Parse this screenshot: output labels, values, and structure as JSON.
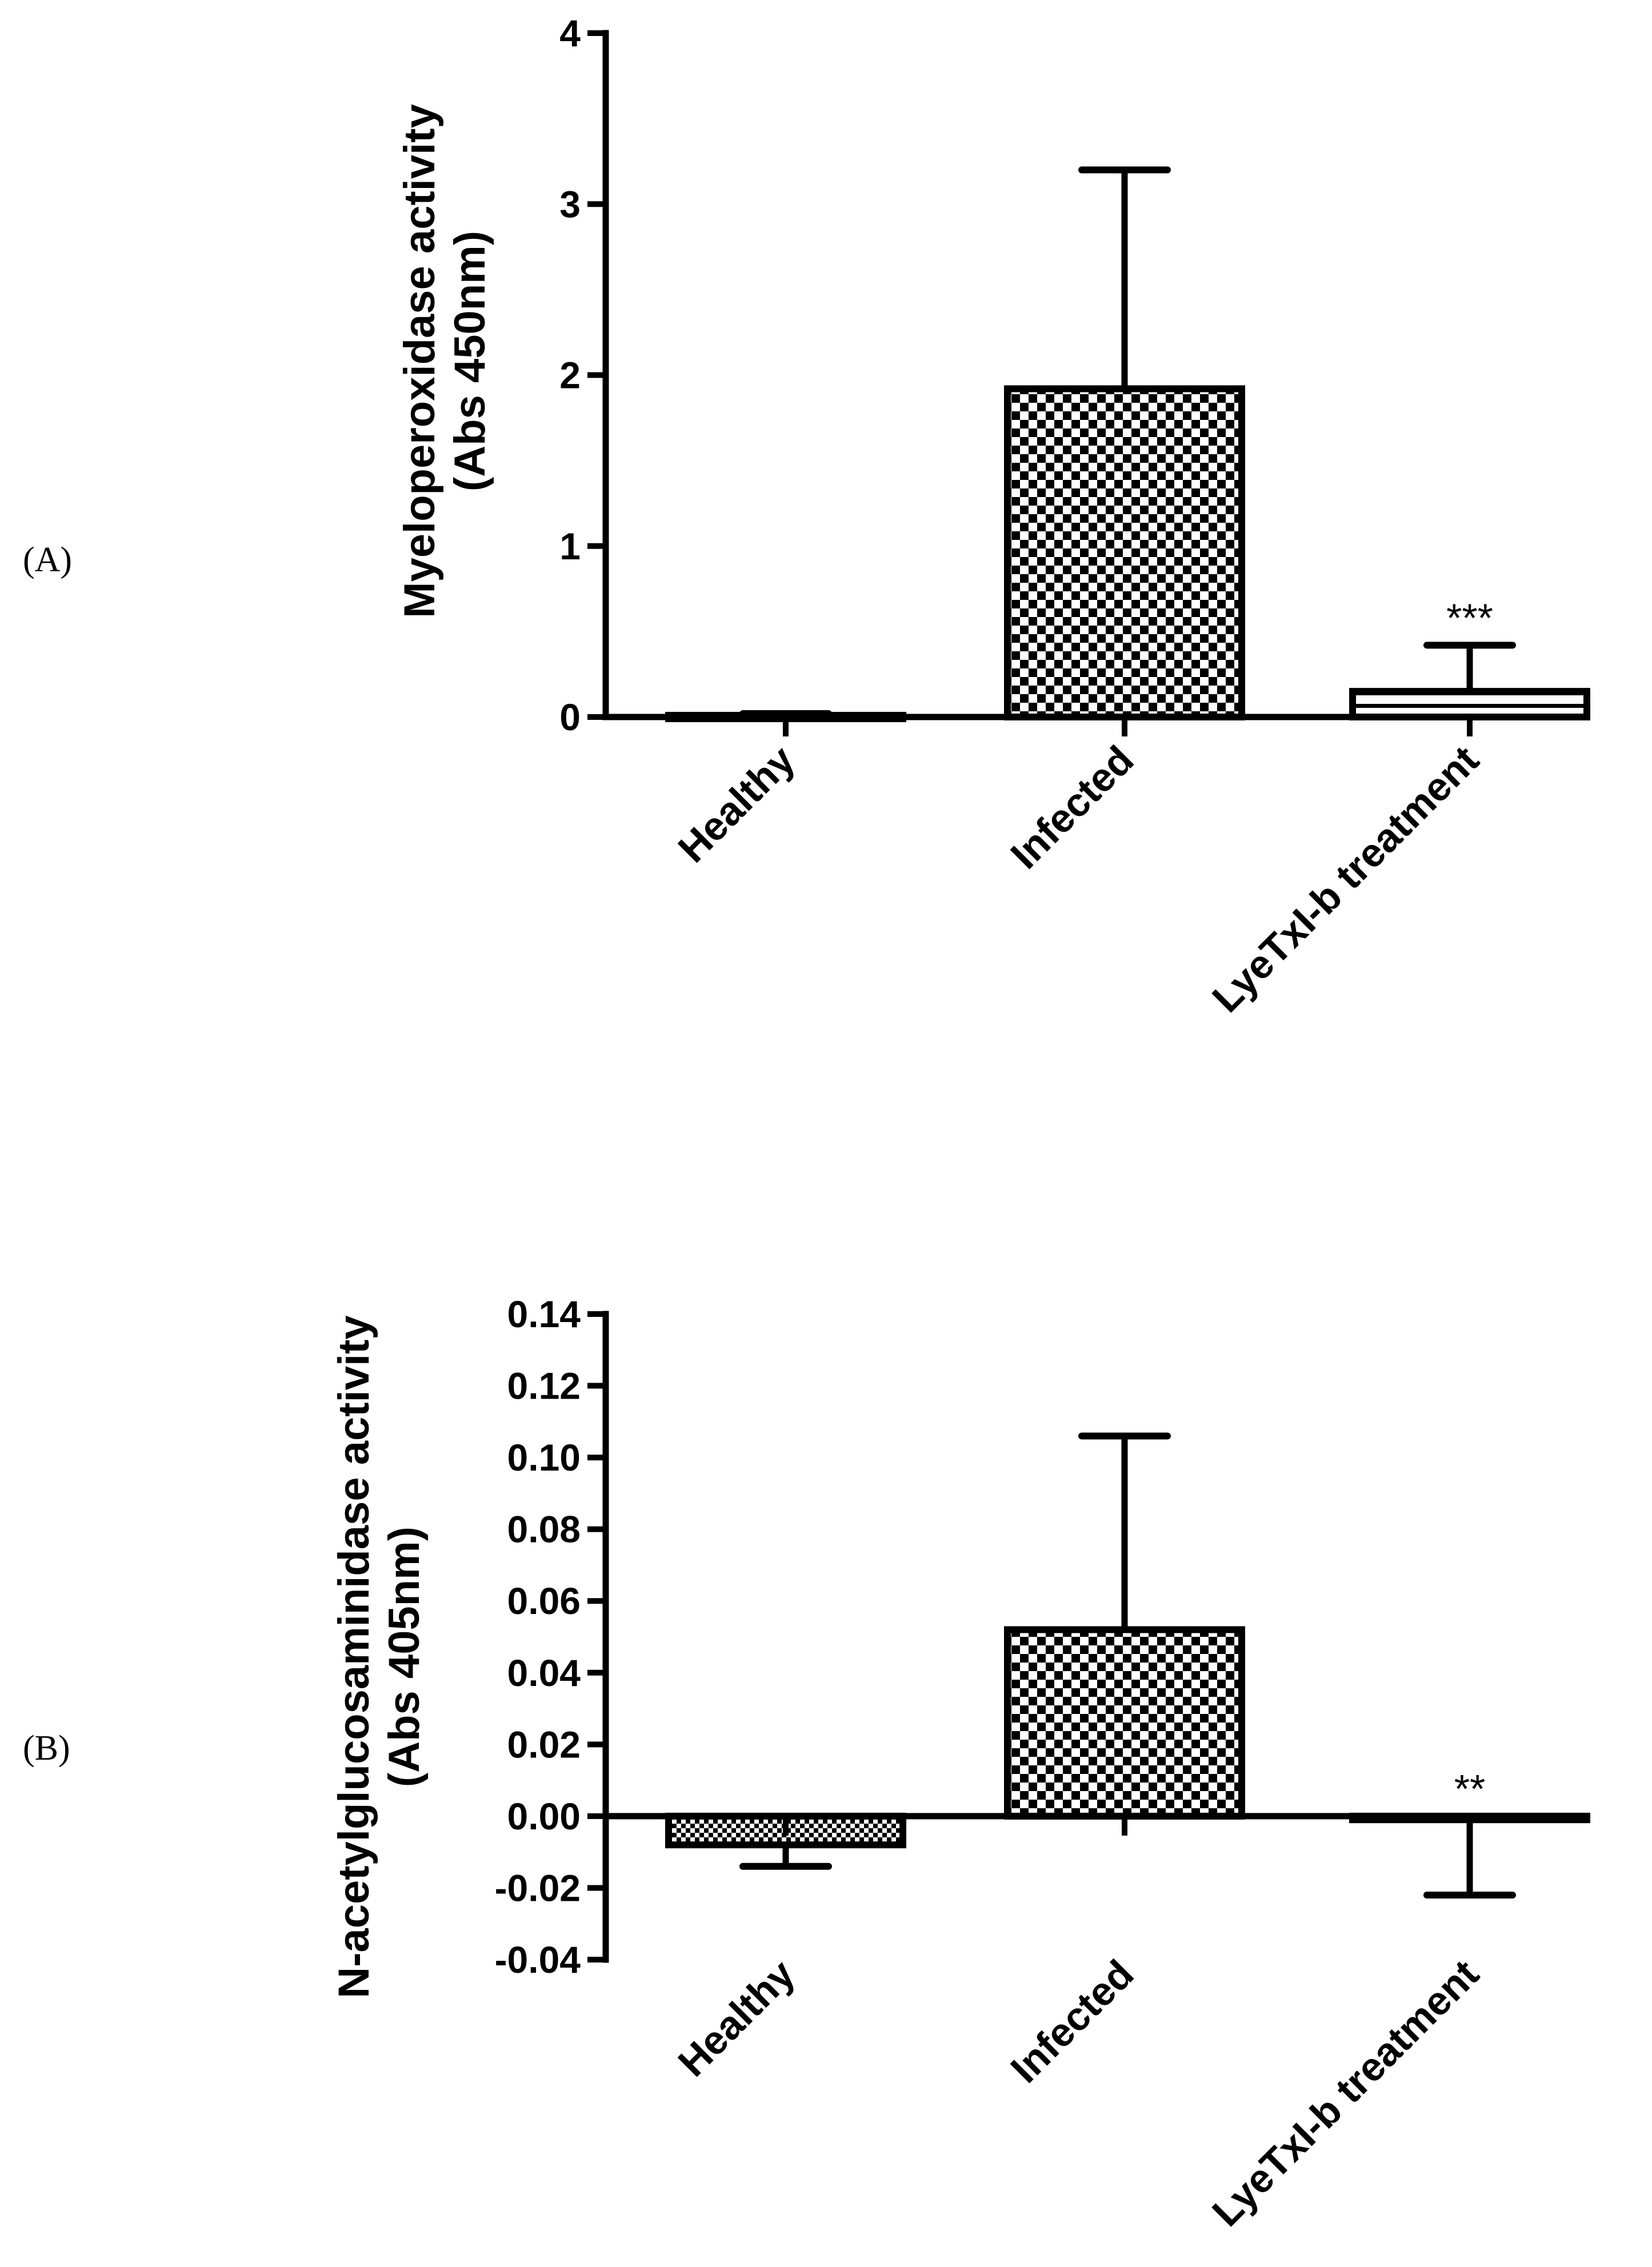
{
  "chart_data": [
    {
      "type": "bar",
      "panel_label": "(A)",
      "ylabel_lines": [
        "Myeloperoxidase activity",
        "(Abs 450nm)"
      ],
      "categories": [
        "Healthy",
        "Infected",
        "LyeTxI-b treatment"
      ],
      "values": [
        0.01,
        1.92,
        0.15
      ],
      "error_upper": [
        0.02,
        3.2,
        0.42
      ],
      "significance": [
        "",
        "",
        "***"
      ],
      "bar_patterns": [
        "white",
        "checker",
        "striped"
      ],
      "ylim": [
        0,
        4
      ],
      "yticks": [
        0,
        1,
        2,
        3,
        4
      ],
      "ytick_labels": [
        "0",
        "1",
        "2",
        "3",
        "4"
      ]
    },
    {
      "type": "bar",
      "panel_label": "(B)",
      "ylabel_lines": [
        "N-acetylglucosaminidase activity",
        "(Abs 405nm)"
      ],
      "categories": [
        "Healthy",
        "Infected",
        "LyeTxI-b treatment"
      ],
      "values": [
        -0.008,
        0.052,
        -0.001
      ],
      "error_lower": [
        -0.014,
        null,
        -0.022
      ],
      "error_upper": [
        null,
        0.106,
        null
      ],
      "significance": [
        "",
        "",
        "**"
      ],
      "bar_patterns": [
        "finechecker",
        "checker",
        "white"
      ],
      "ylim": [
        -0.04,
        0.14
      ],
      "yticks": [
        -0.04,
        -0.02,
        0.0,
        0.02,
        0.04,
        0.06,
        0.08,
        0.1,
        0.12,
        0.14
      ],
      "ytick_labels": [
        "-0.04",
        "-0.02",
        "0.00",
        "0.02",
        "0.04",
        "0.06",
        "0.08",
        "0.10",
        "0.12",
        "0.14"
      ]
    }
  ]
}
